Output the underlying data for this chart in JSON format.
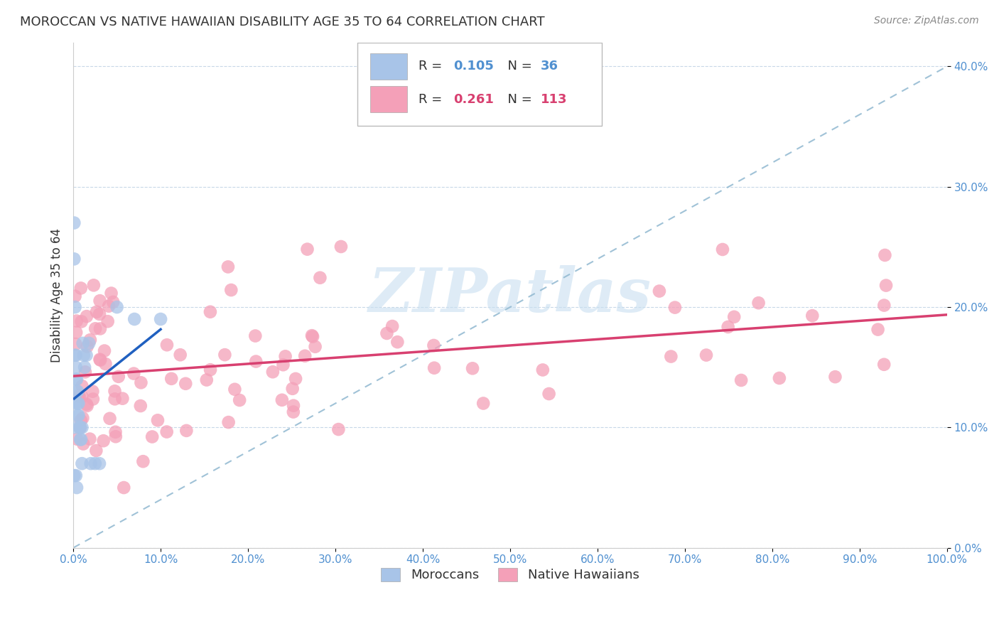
{
  "title": "MOROCCAN VS NATIVE HAWAIIAN DISABILITY AGE 35 TO 64 CORRELATION CHART",
  "source": "Source: ZipAtlas.com",
  "ylabel": "Disability Age 35 to 64",
  "watermark": "ZIPatlas",
  "moroccan_R": 0.105,
  "moroccan_N": 36,
  "hawaiian_R": 0.261,
  "hawaiian_N": 113,
  "moroccan_color": "#a8c4e8",
  "hawaiian_color": "#f4a0b8",
  "moroccan_line_color": "#2060c0",
  "hawaiian_line_color": "#d84070",
  "diag_line_color": "#90b8d0",
  "xmin": 0.0,
  "xmax": 1.0,
  "ymin": 0.0,
  "ymax": 0.42,
  "legend_moroccan_label": "Moroccans",
  "legend_hawaiian_label": "Native Hawaiians",
  "background_color": "#ffffff",
  "grid_color": "#c8d8e8",
  "axis_color": "#5090d0",
  "title_color": "#333333",
  "source_color": "#888888",
  "watermark_color": "#c8dff0"
}
